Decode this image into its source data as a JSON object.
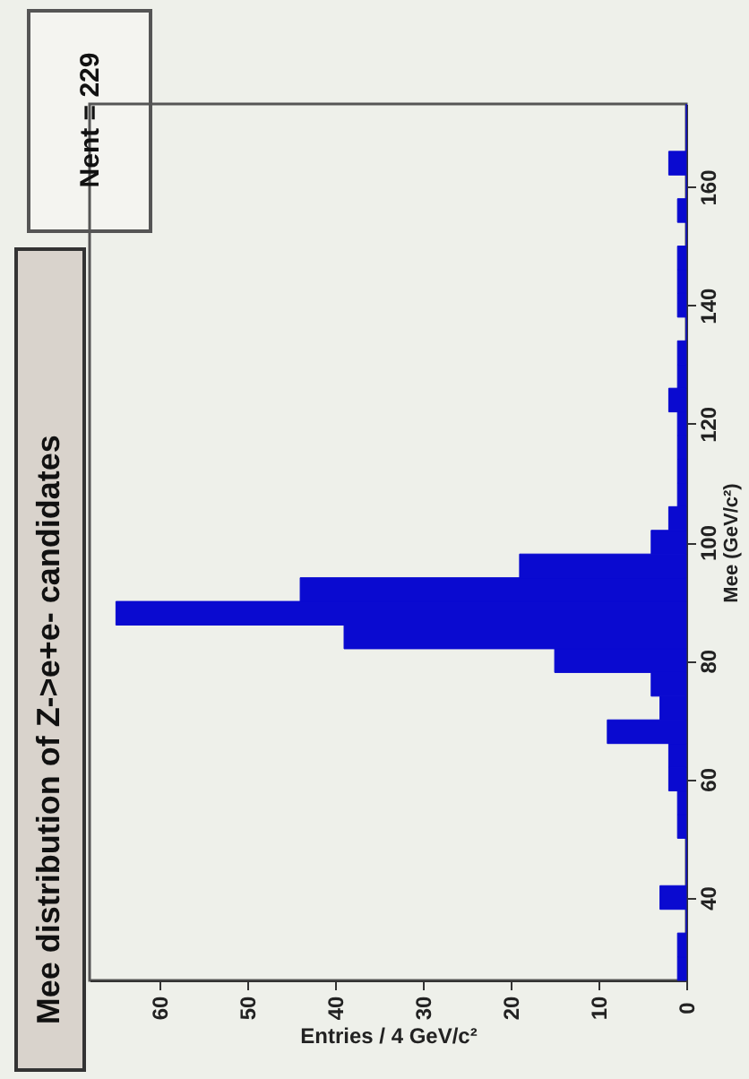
{
  "chart_data": {
    "type": "histogram",
    "orientation": "horizontal",
    "title": "Mee distribution of Z->e+e- candidates",
    "xlabel": "Entries / 4 GeV/c²",
    "ylabel": "Mee (GeV/c²)",
    "bins": [
      26,
      30,
      34,
      38,
      42,
      46,
      50,
      54,
      58,
      62,
      66,
      70,
      74,
      78,
      82,
      86,
      90,
      94,
      98,
      102,
      106,
      110,
      114,
      118,
      122,
      126,
      130,
      134,
      138,
      142,
      146,
      150,
      154,
      158,
      162,
      166,
      170,
      174
    ],
    "values": [
      1,
      1,
      0,
      3,
      0,
      0,
      1,
      1,
      2,
      2,
      9,
      3,
      4,
      15,
      39,
      65,
      44,
      19,
      4,
      2,
      1,
      1,
      1,
      1,
      2,
      1,
      1,
      0,
      1,
      1,
      1,
      0,
      1,
      0,
      2,
      0,
      0
    ],
    "color": "#0a0ad0",
    "xlim": [
      68,
      0
    ],
    "xticks": [
      60,
      50,
      40,
      30,
      20,
      10,
      0
    ],
    "ylim": [
      26,
      174
    ],
    "yticks": [
      40,
      60,
      80,
      100,
      120,
      140,
      160
    ],
    "annotations": [
      "Nent = 229"
    ]
  }
}
